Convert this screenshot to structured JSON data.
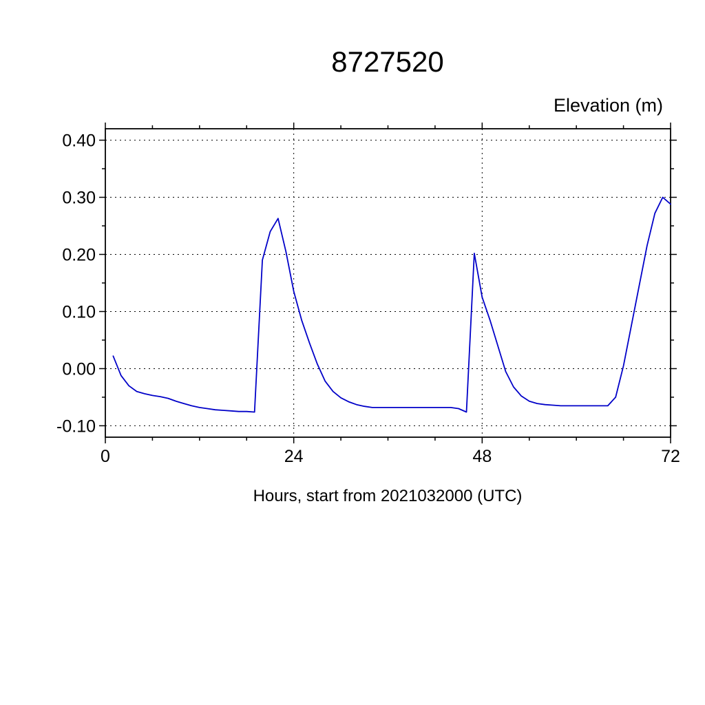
{
  "chart": {
    "title": "8727520",
    "elevation_label": "Elevation (m)",
    "xaxis_title": "Hours, start from 2021032000 (UTC)"
  },
  "chart_data": {
    "type": "line",
    "title": "8727520",
    "ylabel": "Elevation (m)",
    "xlabel": "Hours, start from 2021032000 (UTC)",
    "line_color": "#0000c8",
    "grid": true,
    "legend": "none",
    "xlim": [
      0,
      72
    ],
    "ylim": [
      -0.12,
      0.42
    ],
    "x_ticks": [
      0,
      24,
      48,
      72
    ],
    "x_tick_labels": [
      "0",
      "24",
      "48",
      "72"
    ],
    "x_minor_step": 6,
    "y_ticks": [
      0.4,
      0.3,
      0.2,
      0.1,
      0.0,
      -0.1
    ],
    "y_tick_labels": [
      "0.40",
      "0.30",
      "0.20",
      "0.10",
      "0.00",
      "-0.10"
    ],
    "y_minor_step": 0.05,
    "x_gridlines": [
      24,
      48
    ],
    "series": [
      {
        "name": "elevation",
        "x": [
          1,
          2,
          3,
          4,
          5,
          6,
          7,
          8,
          9,
          10,
          11,
          12,
          13,
          14,
          15,
          16,
          17,
          18,
          19,
          20,
          21,
          22,
          23,
          24,
          25,
          26,
          27,
          28,
          29,
          30,
          31,
          32,
          33,
          34,
          35,
          36,
          37,
          38,
          39,
          40,
          41,
          42,
          43,
          44,
          45,
          46,
          47,
          48,
          49,
          50,
          51,
          52,
          53,
          54,
          55,
          56,
          57,
          58,
          59,
          60,
          61,
          62,
          63,
          64,
          65,
          66,
          67,
          68,
          69,
          70,
          71,
          72
        ],
        "y": [
          0.022,
          -0.012,
          -0.03,
          -0.04,
          -0.044,
          -0.047,
          -0.049,
          -0.052,
          -0.057,
          -0.061,
          -0.065,
          -0.068,
          -0.07,
          -0.072,
          -0.073,
          -0.074,
          -0.075,
          -0.075,
          -0.076,
          0.19,
          0.24,
          0.263,
          0.205,
          0.135,
          0.085,
          0.045,
          0.008,
          -0.022,
          -0.04,
          -0.051,
          -0.058,
          -0.063,
          -0.066,
          -0.068,
          -0.068,
          -0.068,
          -0.068,
          -0.068,
          -0.068,
          -0.068,
          -0.068,
          -0.068,
          -0.068,
          -0.068,
          -0.07,
          -0.076,
          0.202,
          0.125,
          0.085,
          0.04,
          -0.005,
          -0.032,
          -0.048,
          -0.057,
          -0.061,
          -0.063,
          -0.064,
          -0.065,
          -0.065,
          -0.065,
          -0.065,
          -0.065,
          -0.065,
          -0.065,
          -0.05,
          0.005,
          0.075,
          0.145,
          0.215,
          0.272,
          0.3,
          0.288
        ]
      }
    ]
  }
}
